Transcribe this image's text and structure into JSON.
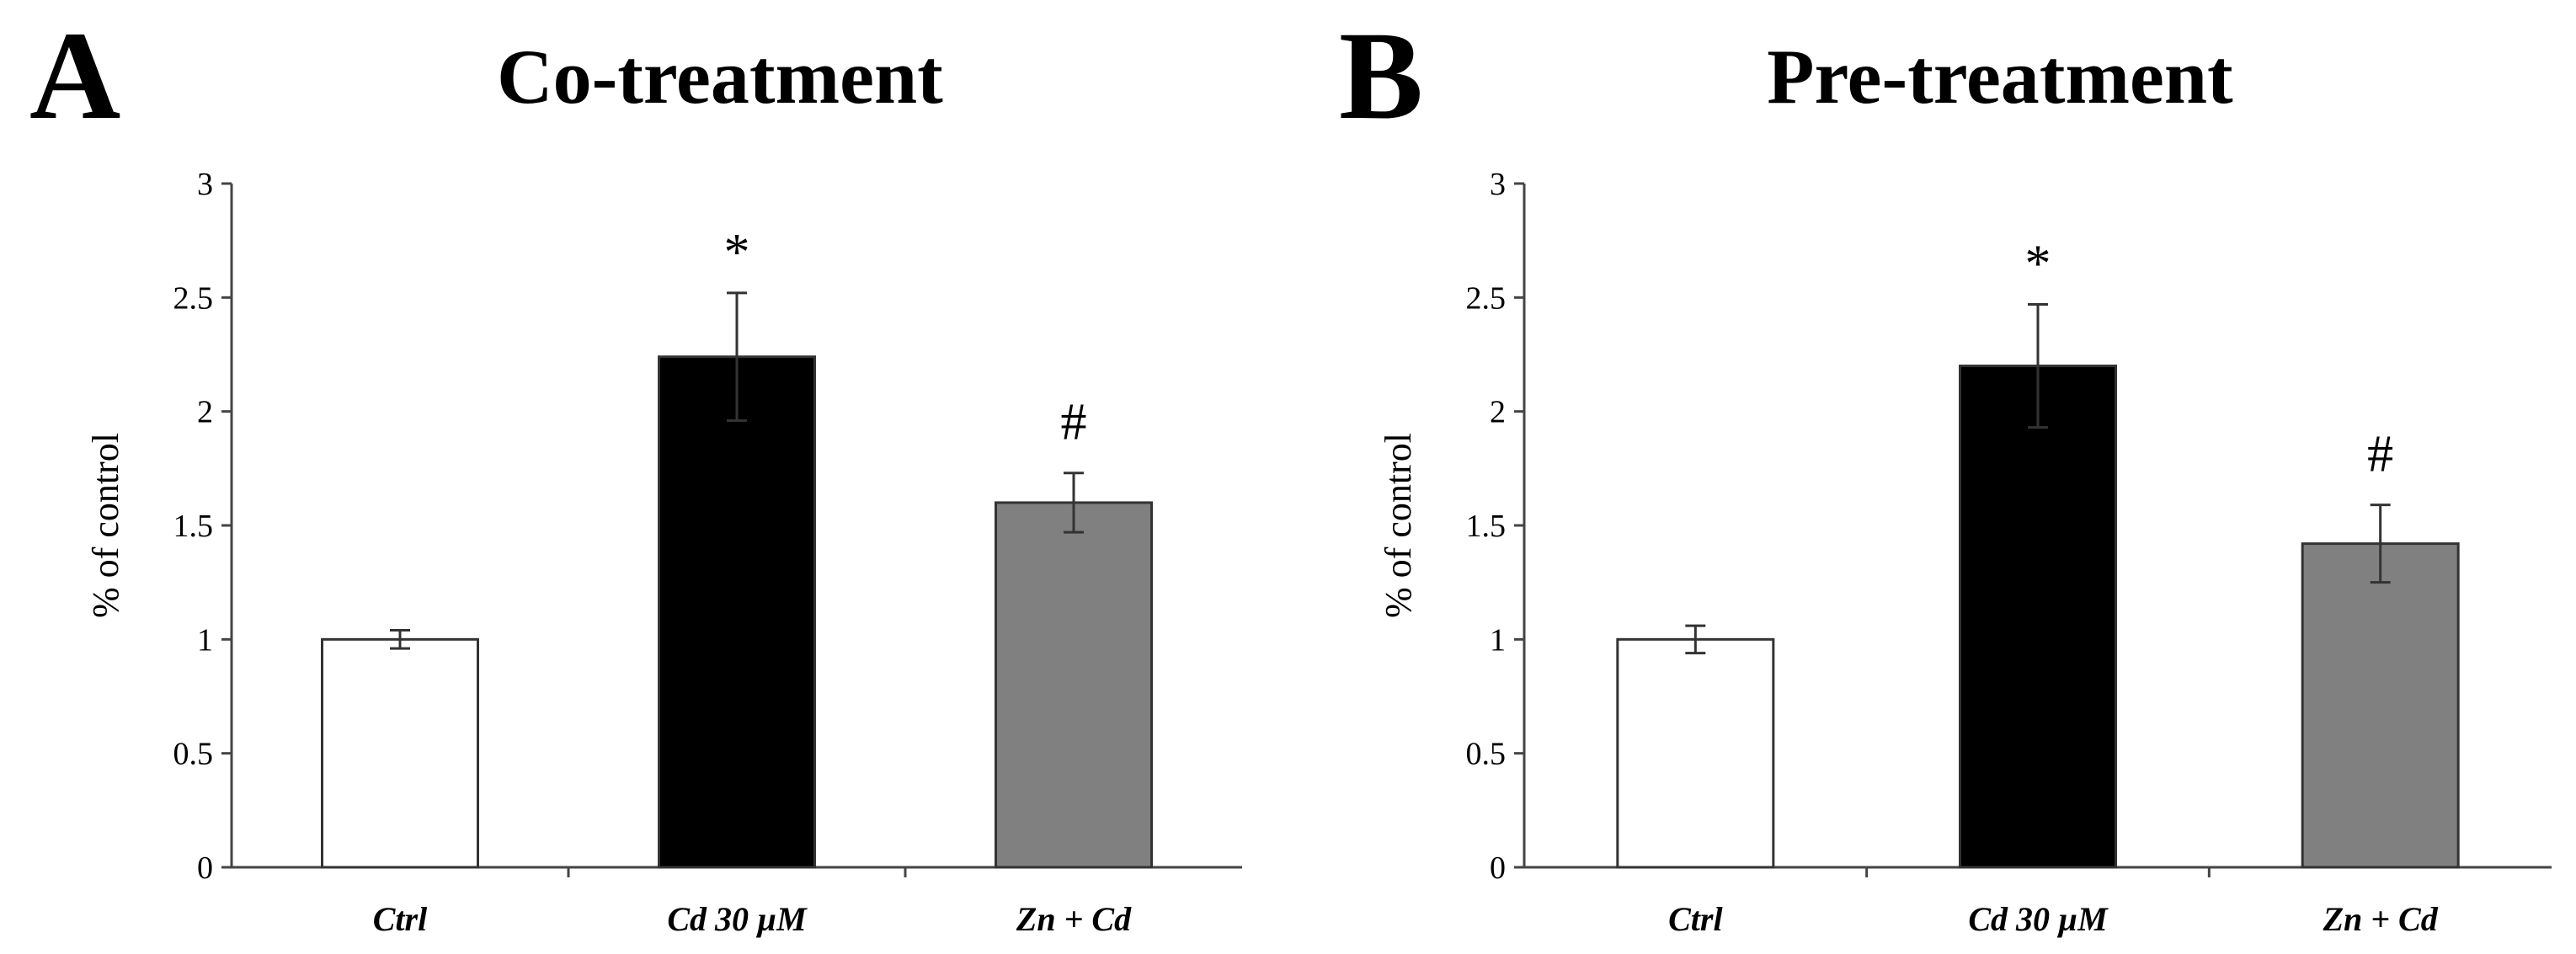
{
  "chart_data": [
    {
      "type": "bar",
      "panel_label": "A",
      "title": "Co-treatment",
      "ylabel": "% of control",
      "xlabel": "",
      "ylim": [
        0,
        3
      ],
      "yticks": [
        0,
        0.5,
        1,
        1.5,
        2,
        2.5,
        3
      ],
      "ytick_labels": [
        "0",
        "0.5",
        "1",
        "1.5",
        "2",
        "2.5",
        "3"
      ],
      "categories": [
        "Ctrl",
        "Cd 30 µM",
        "Zn + Cd"
      ],
      "values": [
        1.0,
        2.24,
        1.6
      ],
      "errors": [
        0.04,
        0.28,
        0.13
      ],
      "colors": [
        "#ffffff",
        "#000000",
        "#808080"
      ],
      "annotations": [
        "",
        "*",
        "#"
      ]
    },
    {
      "type": "bar",
      "panel_label": "B",
      "title": "Pre-treatment",
      "ylabel": "% of control",
      "xlabel": "",
      "ylim": [
        0,
        3
      ],
      "yticks": [
        0,
        0.5,
        1,
        1.5,
        2,
        2.5,
        3
      ],
      "ytick_labels": [
        "0",
        "0.5",
        "1",
        "1.5",
        "2",
        "2.5",
        "3"
      ],
      "categories": [
        "Ctrl",
        "Cd 30 µM",
        "Zn + Cd"
      ],
      "values": [
        1.0,
        2.2,
        1.42
      ],
      "errors": [
        0.06,
        0.27,
        0.17
      ],
      "colors": [
        "#ffffff",
        "#000000",
        "#808080"
      ],
      "annotations": [
        "",
        "*",
        "#"
      ]
    }
  ]
}
